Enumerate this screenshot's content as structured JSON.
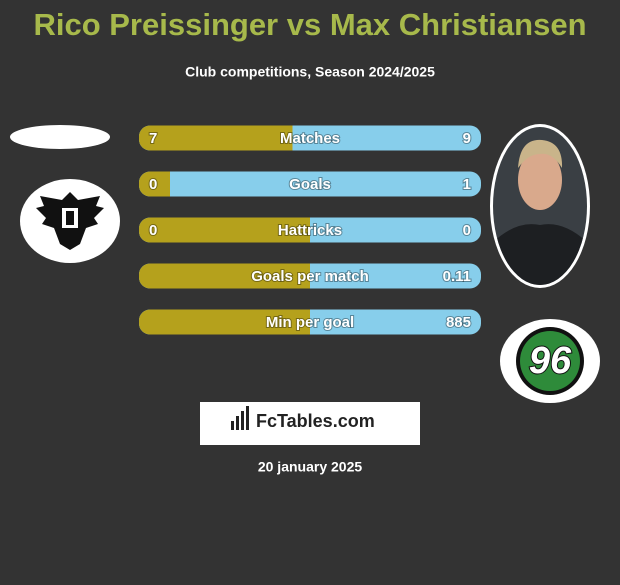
{
  "header": {
    "title": "Rico Preissinger vs Max Christiansen",
    "subtitle": "Club competitions, Season 2024/2025"
  },
  "rows": [
    {
      "label": "Matches",
      "left": 7,
      "right": 9
    },
    {
      "label": "Goals",
      "left": 0,
      "right": 1
    },
    {
      "label": "Hattricks",
      "left": 0,
      "right": 0
    },
    {
      "label": "Goals per match",
      "right": 0.11
    },
    {
      "label": "Min per goal",
      "right": 885
    }
  ],
  "away_logo_text": "96",
  "footer": {
    "brand": "FcTables.com",
    "date": "20 january 2025"
  }
}
